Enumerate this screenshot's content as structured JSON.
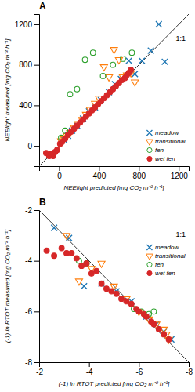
{
  "chart_data": [
    {
      "type": "scatter",
      "title": "A",
      "xlabel": "NEElight predicted [mg CO₂ m⁻² h⁻¹]",
      "ylabel": "NEElight measured [mg CO₂ m⁻² h⁻¹]",
      "xlim": [
        -200,
        1300
      ],
      "ylim": [
        -200,
        1300
      ],
      "xticks": [
        0,
        400,
        800,
        1200
      ],
      "yticks": [
        0,
        400,
        800,
        1200
      ],
      "annotations": [
        "1:1"
      ],
      "legend": "lower right",
      "series": [
        {
          "name": "meadow",
          "marker": "x",
          "x": [
            50,
            90,
            130,
            180,
            240,
            300,
            360,
            420,
            500,
            560,
            620,
            700,
            760,
            830,
            920,
            1000,
            1060
          ],
          "values": [
            60,
            100,
            150,
            200,
            270,
            340,
            380,
            450,
            530,
            610,
            660,
            840,
            710,
            840,
            940,
            1200,
            830
          ]
        },
        {
          "name": "transitional",
          "marker": "triangle-down",
          "x": [
            20,
            50,
            80,
            110,
            150,
            190,
            230,
            270,
            310,
            360,
            400,
            450,
            500,
            550,
            600,
            640,
            680,
            720,
            760
          ],
          "values": [
            50,
            70,
            100,
            130,
            180,
            220,
            260,
            310,
            360,
            420,
            470,
            780,
            680,
            950,
            850,
            680,
            700,
            720,
            630
          ]
        },
        {
          "name": "fen",
          "marker": "circle-open",
          "x": [
            20,
            60,
            110,
            180,
            260,
            340,
            440,
            540,
            640,
            730
          ],
          "values": [
            80,
            150,
            510,
            560,
            850,
            920,
            690,
            800,
            860,
            920
          ]
        },
        {
          "name": "wet fen",
          "marker": "circle",
          "x": [
            -130,
            -100,
            -80,
            -60,
            -40,
            -20,
            10,
            30,
            60,
            90,
            120,
            150,
            180,
            210,
            240,
            270,
            300,
            330,
            360,
            390,
            420,
            450,
            480,
            510,
            540,
            570,
            600,
            630,
            660,
            680,
            700,
            720
          ],
          "values": [
            -70,
            -100,
            -80,
            -100,
            -60,
            -40,
            20,
            40,
            70,
            110,
            140,
            170,
            200,
            230,
            260,
            290,
            320,
            350,
            380,
            410,
            440,
            470,
            500,
            530,
            560,
            590,
            620,
            650,
            670,
            700,
            720,
            750
          ]
        }
      ]
    },
    {
      "type": "scatter",
      "title": "B",
      "xlabel": "(-1) ln RTOT predicted [mg CO₂ m⁻² h⁻¹]",
      "ylabel": "(-1) ln RTOT measured [mg CO₂ m⁻² h⁻¹]",
      "xlim": [
        -2,
        -8
      ],
      "ylim": [
        -8,
        -2
      ],
      "xticks": [
        -2,
        -4,
        -6,
        -8
      ],
      "yticks": [
        -8,
        -6,
        -4,
        -2
      ],
      "annotations": [
        "1:1"
      ],
      "legend": "upper right",
      "series": [
        {
          "name": "meadow",
          "marker": "x",
          "x": [
            -2.6,
            -3.2,
            -3.8,
            -4.5,
            -5.1,
            -5.7,
            -6.3,
            -6.7,
            -7.0,
            -7.3
          ],
          "values": [
            -2.7,
            -3.1,
            -5.0,
            -4.9,
            -5.2,
            -5.6,
            -6.2,
            -6.5,
            -6.8,
            -7.1
          ]
        },
        {
          "name": "transitional",
          "marker": "triangle-down",
          "x": [
            -3.1,
            -3.6,
            -4.1,
            -4.5,
            -5.0,
            -5.5,
            -6.0,
            -6.4,
            -6.7,
            -7.0,
            -7.1,
            -7.2
          ],
          "values": [
            -3.0,
            -4.8,
            -4.3,
            -4.1,
            -5.0,
            -5.5,
            -6.0,
            -6.3,
            -6.5,
            -6.7,
            -6.9,
            -7.1
          ]
        },
        {
          "name": "fen",
          "marker": "circle-open",
          "x": [
            -3.6,
            -3.9,
            -5.8,
            -6.1,
            -6.4,
            -6.6
          ],
          "values": [
            -4.0,
            -4.1,
            -5.9,
            -6.0,
            -6.1,
            -6.0
          ]
        },
        {
          "name": "wet fen",
          "marker": "circle",
          "x": [
            -2.3,
            -2.6,
            -2.9,
            -3.1,
            -3.3,
            -3.5,
            -3.7,
            -3.9,
            -4.1,
            -4.3,
            -4.5,
            -4.7,
            -4.9,
            -5.1,
            -5.3,
            -5.5,
            -5.7,
            -5.9,
            -6.0,
            -6.2,
            -6.3,
            -6.5,
            -6.6,
            -6.8,
            -7.0,
            -7.2
          ],
          "values": [
            -3.6,
            -3.8,
            -3.5,
            -3.7,
            -3.7,
            -3.9,
            -4.2,
            -4.1,
            -4.5,
            -4.4,
            -4.9,
            -5.1,
            -5.2,
            -5.3,
            -5.5,
            -5.6,
            -5.7,
            -5.9,
            -6.0,
            -6.1,
            -6.2,
            -6.4,
            -6.5,
            -6.7,
            -6.9,
            -7.1
          ]
        }
      ]
    }
  ]
}
